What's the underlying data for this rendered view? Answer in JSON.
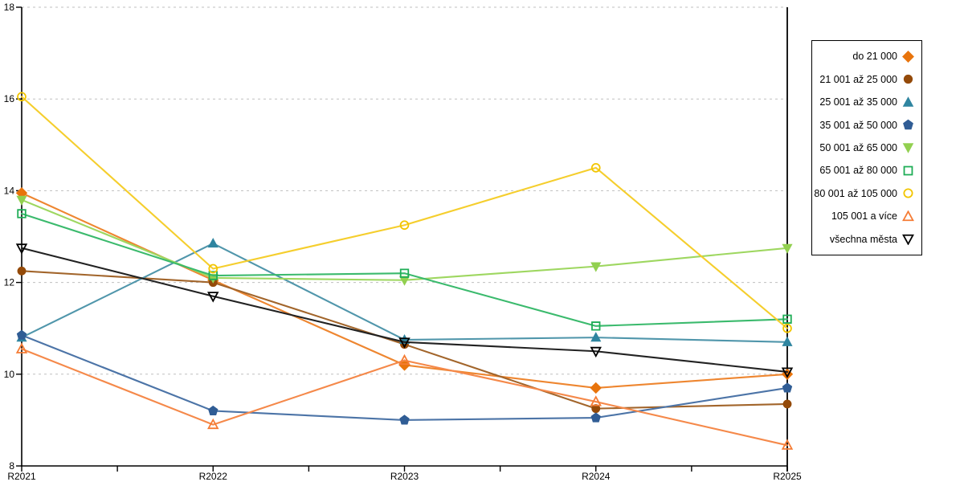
{
  "chart_data": {
    "type": "line",
    "title": "",
    "xlabel": "",
    "ylabel": "",
    "categories": [
      "R2021",
      "R2022",
      "R2023",
      "R2024",
      "R2025"
    ],
    "ylim": [
      8,
      18
    ],
    "yticks": [
      8,
      10,
      12,
      14,
      16,
      18
    ],
    "grid": "horizontal-dashed",
    "gridline_color": "#bfbfbf",
    "axis_color": "#000000",
    "legend_position": "right-box",
    "series": [
      {
        "name": "do 21 000",
        "marker": "diamond",
        "filled": true,
        "color": "#E8740C",
        "line_color": "#EE8630",
        "values": [
          13.95,
          12.05,
          10.2,
          9.7,
          10.0
        ]
      },
      {
        "name": "21 001 až 25 000",
        "marker": "circle",
        "filled": true,
        "color": "#944A09",
        "line_color": "#A2652B",
        "values": [
          12.25,
          12.0,
          10.65,
          9.25,
          9.35
        ]
      },
      {
        "name": "25 001 až 35 000",
        "marker": "triangle-up",
        "filled": true,
        "color": "#2F85A0",
        "line_color": "#5096AB",
        "values": [
          10.8,
          12.85,
          10.75,
          10.8,
          10.7
        ]
      },
      {
        "name": "35 001 až 50 000",
        "marker": "pentagon",
        "filled": true,
        "color": "#305D95",
        "line_color": "#4C74A7",
        "values": [
          10.85,
          9.2,
          9.0,
          9.05,
          9.7
        ]
      },
      {
        "name": "50 001 až 65 000",
        "marker": "triangle-down",
        "filled": true,
        "color": "#92D050",
        "line_color": "#9ED760",
        "values": [
          13.8,
          12.1,
          12.05,
          12.35,
          12.75
        ]
      },
      {
        "name": "65 001 až 80 000",
        "marker": "square",
        "filled": false,
        "color": "#1EAD56",
        "line_color": "#3BBA6D",
        "values": [
          13.5,
          12.15,
          12.2,
          11.05,
          11.2
        ]
      },
      {
        "name": "80 001 až 105 000",
        "marker": "circle",
        "filled": false,
        "color": "#F2C500",
        "line_color": "#F5CE2D",
        "values": [
          16.05,
          12.3,
          13.25,
          14.5,
          11.0
        ]
      },
      {
        "name": "105 001 a více",
        "marker": "triangle-up",
        "filled": false,
        "color": "#F57C35",
        "line_color": "#F5894A",
        "values": [
          10.55,
          8.9,
          10.3,
          9.4,
          8.45
        ]
      },
      {
        "name": "všechna města",
        "marker": "triangle-down",
        "filled": false,
        "color": "#000000",
        "line_color": "#222222",
        "values": [
          12.75,
          11.7,
          10.7,
          10.5,
          10.05
        ]
      }
    ]
  }
}
